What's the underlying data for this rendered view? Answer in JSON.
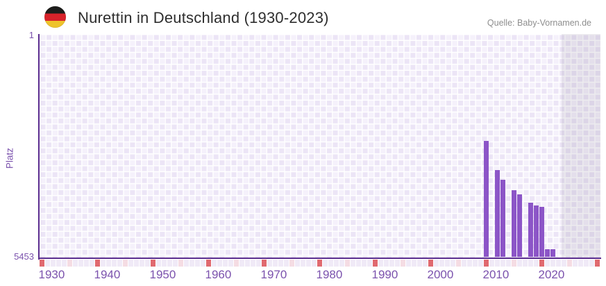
{
  "header": {
    "flag_icon": "german-flag-roundel",
    "title": "Nurettin in Deutschland (1930-2023)",
    "source": "Quelle: Baby-Vornamen.de"
  },
  "chart_data": {
    "type": "bar",
    "title": "Nurettin in Deutschland (1930-2023)",
    "xlabel": "",
    "ylabel": "Platz",
    "y_axis": {
      "top_label": "1",
      "bottom_label": "5453",
      "min": 1,
      "max": 5453,
      "inverted": true,
      "note": "rank 1 at top, rank 5453 at baseline"
    },
    "x_axis": {
      "data_start": 1930,
      "data_end": 2023,
      "grid_end": 2030,
      "future_shade_start": 2024,
      "tick_years": [
        1930,
        1940,
        1950,
        1960,
        1970,
        1980,
        1990,
        2000,
        2010,
        2020
      ]
    },
    "bars": [
      {
        "year": 2010,
        "rank": 2610
      },
      {
        "year": 2012,
        "rank": 3320
      },
      {
        "year": 2013,
        "rank": 3550
      },
      {
        "year": 2015,
        "rank": 3810
      },
      {
        "year": 2016,
        "rank": 3920
      },
      {
        "year": 2018,
        "rank": 4120
      },
      {
        "year": 2019,
        "rank": 4190
      },
      {
        "year": 2020,
        "rank": 4215
      },
      {
        "year": 2021,
        "rank": 5250
      },
      {
        "year": 2022,
        "rank": 5250
      }
    ],
    "year_strip": {
      "decade_years": [
        1930,
        1940,
        1950,
        1960,
        1970,
        1980,
        1990,
        2000,
        2010,
        2020,
        2030
      ],
      "mid_decade_years": [
        1935,
        1945,
        1955,
        1965,
        1975,
        1985,
        1995,
        2005,
        2015,
        2025
      ]
    },
    "legend": "none",
    "grid": "checkerboard",
    "colors": {
      "bar": "#8c55c7",
      "axis": "#5b2d8f",
      "tick_label": "#7b52ad",
      "title": "#2e2e2e",
      "source": "#8e8e8e",
      "grid_cell_dark": "#ece5f6",
      "grid_cell_light": "#f5f1fb",
      "future_overlay": "rgba(104,96,122,0.12)",
      "strip_default": "#f0eaf7",
      "strip_decade": "#e0696f",
      "strip_mid_decade": "#f5dce3",
      "flag_black": "#1d1d1b",
      "flag_red": "#d8232a",
      "flag_gold": "#eec32c"
    }
  }
}
